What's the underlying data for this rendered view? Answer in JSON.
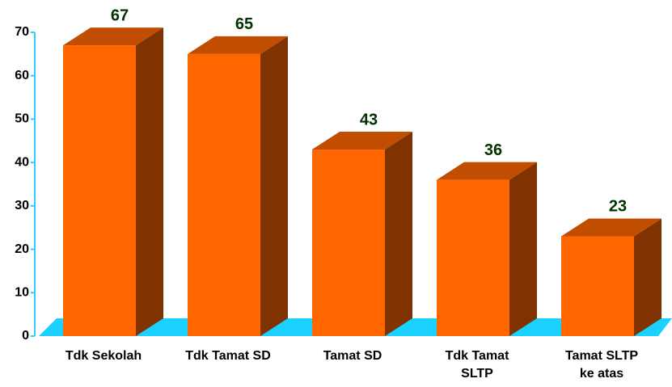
{
  "chart_data": {
    "type": "bar3d",
    "categories": [
      "Tdk Sekolah",
      "Tdk Tamat SD",
      "Tamat SD",
      "Tdk Tamat\nSLTP",
      "Tamat SLTP\nke atas"
    ],
    "values": [
      67,
      65,
      43,
      36,
      23
    ],
    "color": "#ff6600",
    "ylim": [
      0,
      70
    ],
    "yticks": [
      0,
      10,
      20,
      30,
      40,
      50,
      60,
      70
    ]
  }
}
